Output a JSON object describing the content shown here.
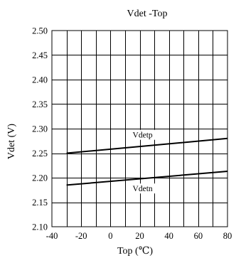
{
  "chart_data": {
    "type": "line",
    "title": "Vdet -Top",
    "xlabel": "Top (℃)",
    "ylabel": "Vdet (V)",
    "xlim": [
      -40,
      80
    ],
    "ylim": [
      2.1,
      2.5
    ],
    "x_ticks": [
      "-40",
      "-20",
      "0",
      "20",
      "40",
      "60",
      "80"
    ],
    "y_ticks": [
      "2.10",
      "2.15",
      "2.20",
      "2.25",
      "2.30",
      "2.35",
      "2.40",
      "2.45",
      "2.50"
    ],
    "grid": true,
    "legend": "none",
    "series": [
      {
        "name": "Vdetp",
        "x": [
          -30,
          80
        ],
        "y": [
          2.25,
          2.28
        ],
        "color": "#000000"
      },
      {
        "name": "Vdetn",
        "x": [
          -30,
          80
        ],
        "y": [
          2.185,
          2.213
        ],
        "color": "#000000"
      }
    ]
  }
}
